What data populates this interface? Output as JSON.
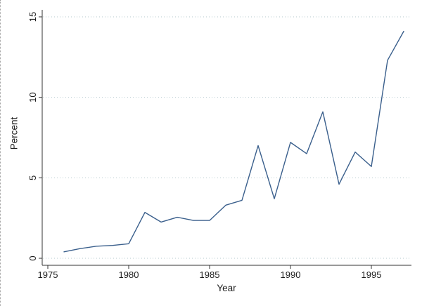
{
  "chart_data": {
    "type": "line",
    "title": "",
    "xlabel": "Year",
    "ylabel": "Percent",
    "x": [
      1976,
      1977,
      1978,
      1979,
      1980,
      1981,
      1982,
      1983,
      1984,
      1985,
      1986,
      1987,
      1988,
      1989,
      1990,
      1991,
      1992,
      1993,
      1994,
      1995,
      1996,
      1997
    ],
    "values": [
      0.4,
      0.6,
      0.75,
      0.8,
      0.9,
      2.85,
      2.25,
      2.55,
      2.35,
      2.35,
      3.3,
      3.6,
      7.0,
      3.7,
      7.2,
      6.5,
      9.1,
      4.6,
      6.6,
      5.7,
      12.3,
      14.1
    ],
    "xticks": [
      1975,
      1980,
      1985,
      1990,
      1995
    ],
    "yticks": [
      0,
      5,
      10,
      15
    ],
    "xlim": [
      1974.65,
      1997.5
    ],
    "ylim": [
      0,
      15
    ],
    "grid": "horizontal dotted",
    "legend": "none",
    "colors": {
      "line": "#3a5f8c",
      "grid": "#b6c9ce",
      "axis": "#333333",
      "text": "#1c1c1c"
    }
  }
}
